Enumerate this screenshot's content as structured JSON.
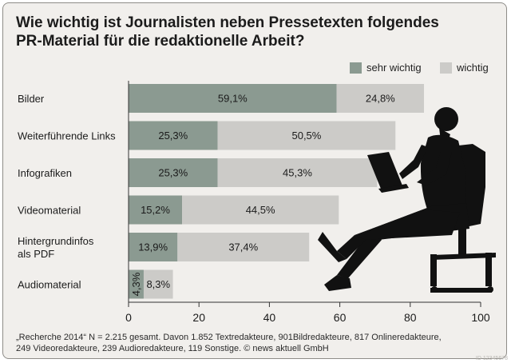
{
  "title_line1": "Wie wichtig ist Journalisten neben Pressetexten folgendes",
  "title_line2": "PR-Material für die redaktionelle Arbeit?",
  "legend": [
    {
      "label": "sehr wichtig",
      "color": "#8b9a91"
    },
    {
      "label": "wichtig",
      "color": "#cccbc8"
    }
  ],
  "chart_data": {
    "type": "bar",
    "orientation": "horizontal",
    "stacked": true,
    "categories": [
      [
        "Bilder"
      ],
      [
        "Weiterführende Links"
      ],
      [
        "Infografiken"
      ],
      [
        "Videomaterial"
      ],
      [
        "Hintergrundinfos",
        "als PDF"
      ],
      [
        "Audiomaterial"
      ]
    ],
    "series": [
      {
        "name": "sehr wichtig",
        "color": "#8b9a91",
        "values": [
          59.1,
          25.3,
          25.3,
          15.2,
          13.9,
          4.3
        ]
      },
      {
        "name": "wichtig",
        "color": "#cccbc8",
        "values": [
          24.8,
          50.5,
          45.3,
          44.5,
          37.4,
          8.3
        ]
      }
    ],
    "data_labels": [
      [
        "59,1%",
        "25,3%",
        "25,3%",
        "15,2%",
        "13,9%",
        "4,3%"
      ],
      [
        "24,8%",
        "50,5%",
        "45,3%",
        "44,5%",
        "37,4%",
        "8,3%"
      ]
    ],
    "xlim": [
      0,
      100
    ],
    "xticks": [
      0,
      20,
      40,
      60,
      80,
      100
    ],
    "grid": false,
    "legend_position": "top-right"
  },
  "footnote_line1": "„Recherche 2014“ N = 2.215 gesamt. Davon 1.852 Textredakteure, 901Bildredakteure, 817 Onlineredakteure,",
  "footnote_line2": "249 Videoredakteure, 239 Audioredakteure, 119 Sonstige. © news aktuell GmbH",
  "watermark": "ID 12345678"
}
